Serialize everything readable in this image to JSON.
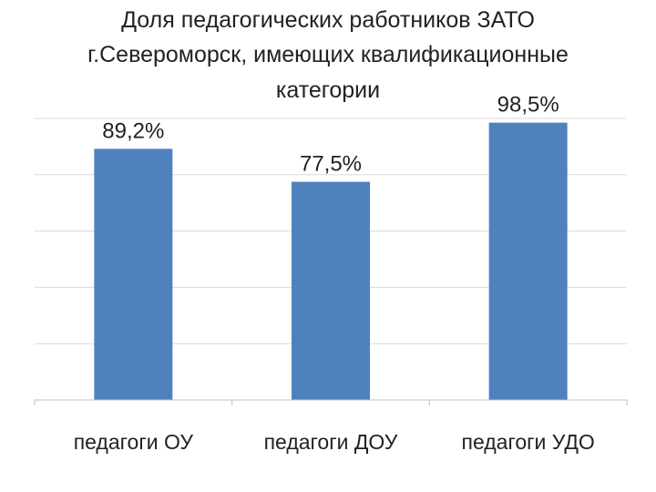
{
  "chart_data": {
    "type": "bar",
    "title_lines": [
      "Доля педагогических работников ЗАТО",
      "г.Североморск, имеющих квалификационные",
      "категории"
    ],
    "categories": [
      "педагоги ОУ",
      "педагоги ДОУ",
      "педагоги УДО"
    ],
    "values": [
      89.2,
      77.5,
      98.5
    ],
    "data_labels": [
      "89,2%",
      "77,5%",
      "98,5%"
    ],
    "ylim": [
      0,
      100
    ],
    "grid": true,
    "legend": "none",
    "bar_color": "#4f81bd"
  }
}
